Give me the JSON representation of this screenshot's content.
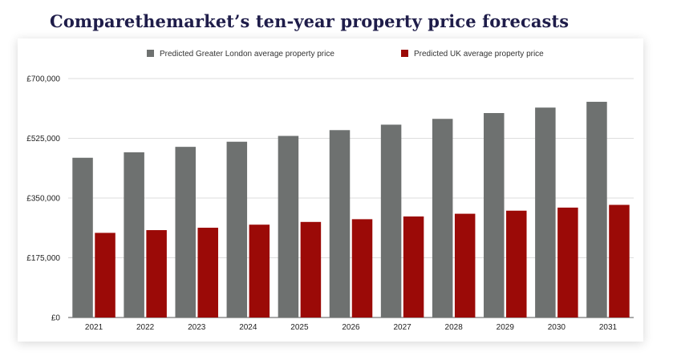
{
  "page": {
    "title": "Comparethemarket’s ten-year property price forecasts"
  },
  "chart_data": {
    "type": "bar",
    "title": "Comparethemarket’s ten-year property price forecasts",
    "xlabel": "",
    "ylabel": "",
    "categories": [
      "2021",
      "2022",
      "2023",
      "2024",
      "2025",
      "2026",
      "2027",
      "2028",
      "2029",
      "2030",
      "2031"
    ],
    "series": [
      {
        "name": "Predicted Greater London average property price",
        "color": "#6e7170",
        "values": [
          468000,
          484000,
          500000,
          515000,
          532000,
          549000,
          565000,
          582000,
          599000,
          615000,
          632000
        ]
      },
      {
        "name": "Predicted UK average property price",
        "color": "#9b0a07",
        "values": [
          248000,
          256000,
          263000,
          272000,
          280000,
          288000,
          296000,
          304000,
          313000,
          322000,
          330000
        ]
      }
    ],
    "ylim": [
      0,
      700000
    ],
    "yticks": [
      0,
      175000,
      350000,
      525000,
      700000
    ],
    "ytick_labels": [
      "£0",
      "£175,000",
      "£350,000",
      "£525,000",
      "£700,000"
    ],
    "grid": true,
    "legend_position": "top"
  }
}
